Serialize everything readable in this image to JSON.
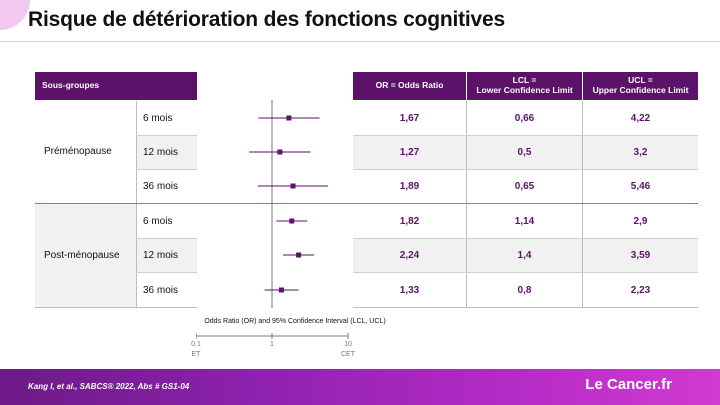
{
  "title": "Risque de détérioration des fonctions cognitives",
  "table": {
    "subgroup_header": "Sous-groupes",
    "col_or": "OR = Odds Ratio",
    "col_lcl_1": "LCL =",
    "col_lcl_2": "Lower Confidence Limit",
    "col_ucl_1": "UCL =",
    "col_ucl_2": "Upper Confidence Limit",
    "groups": [
      {
        "label": "Préménopause",
        "rows": [
          {
            "time": "6 mois",
            "or": "1,67",
            "lcl": "0,66",
            "ucl": "4,22"
          },
          {
            "time": "12 mois",
            "or": "1,27",
            "lcl": "0,5",
            "ucl": "3,2"
          },
          {
            "time": "36 mois",
            "or": "1,89",
            "lcl": "0,65",
            "ucl": "5,46"
          }
        ]
      },
      {
        "label": "Post-ménopause",
        "rows": [
          {
            "time": "6 mois",
            "or": "1,82",
            "lcl": "1,14",
            "ucl": "2,9"
          },
          {
            "time": "12 mois",
            "or": "2,24",
            "lcl": "1,4",
            "ucl": "3,59"
          },
          {
            "time": "36 mois",
            "or": "1,33",
            "lcl": "0,8",
            "ucl": "2,23"
          }
        ]
      }
    ]
  },
  "chart_data": {
    "type": "forest",
    "xlabel": "Odds Ratio (OR) and 95% Confidence Interval (LCL, UCL)",
    "xscale": "log",
    "xlim": [
      0.1,
      10
    ],
    "ticks": [
      {
        "value": 0.1,
        "label": "0.1",
        "sublabel": "ET"
      },
      {
        "value": 1,
        "label": "1",
        "sublabel": ""
      },
      {
        "value": 10,
        "label": "10",
        "sublabel": "CET"
      }
    ],
    "points": [
      {
        "group": "Préménopause",
        "label": "6 mois",
        "or": 1.67,
        "lcl": 0.66,
        "ucl": 4.22
      },
      {
        "group": "Préménopause",
        "label": "12 mois",
        "or": 1.27,
        "lcl": 0.5,
        "ucl": 3.2
      },
      {
        "group": "Préménopause",
        "label": "36 mois",
        "or": 1.89,
        "lcl": 0.65,
        "ucl": 5.46
      },
      {
        "group": "Post-ménopause",
        "label": "6 mois",
        "or": 1.82,
        "lcl": 1.14,
        "ucl": 2.9
      },
      {
        "group": "Post-ménopause",
        "label": "12 mois",
        "or": 2.24,
        "lcl": 1.4,
        "ucl": 3.59
      },
      {
        "group": "Post-ménopause",
        "label": "36 mois",
        "or": 1.33,
        "lcl": 0.8,
        "ucl": 2.23
      }
    ],
    "marker_color": "#5b1268",
    "reference_line": 1
  },
  "footer": {
    "citation": "Kang I, et al., SABCS® 2022, Abs # GS1-04",
    "brand": "Le Cancer.fr"
  },
  "colors": {
    "header_bg": "#5b1268",
    "accent": "#d44ad0",
    "stripe": "#f1f1f1",
    "value_text": "#5b1268"
  }
}
